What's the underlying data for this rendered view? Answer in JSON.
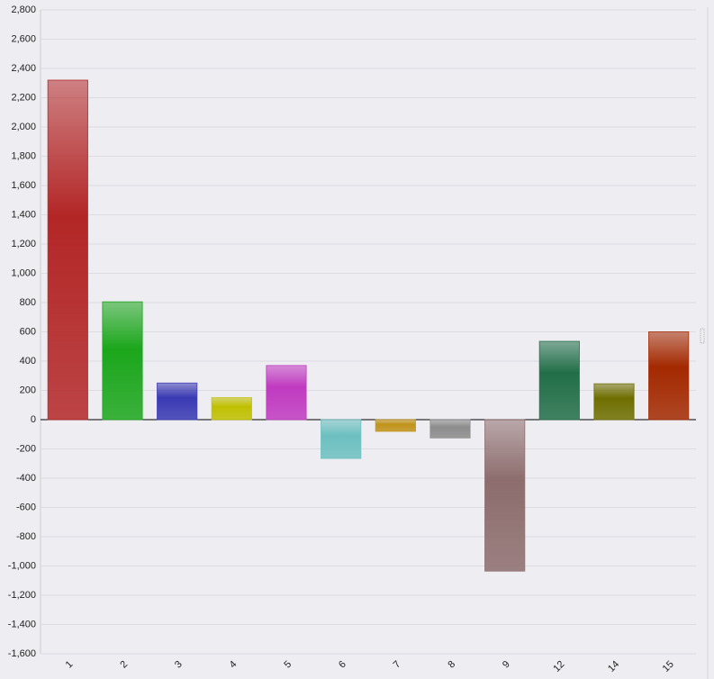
{
  "chart_data": {
    "type": "bar",
    "categories": [
      "1",
      "2",
      "3",
      "4",
      "5",
      "6",
      "7",
      "8",
      "9",
      "12",
      "14",
      "15"
    ],
    "values": [
      2320,
      805,
      250,
      150,
      370,
      -265,
      -80,
      -125,
      -1035,
      535,
      245,
      600
    ],
    "colors": [
      "#e03030",
      "#22d022",
      "#4848e0",
      "#f0f000",
      "#f048f0",
      "#88f0f0",
      "#f0b820",
      "#b0b0b0",
      "#b08888",
      "#2a8a5a",
      "#8a8a00",
      "#cc3300"
    ],
    "ylim": [
      -1600,
      2800
    ],
    "yticks": [
      {
        "value": -1600,
        "label": "-1,600"
      },
      {
        "value": -1400,
        "label": "-1,400"
      },
      {
        "value": -1200,
        "label": "-1,200"
      },
      {
        "value": -1000,
        "label": "-1,000"
      },
      -800,
      -600,
      -400,
      -200,
      0,
      200,
      400,
      600,
      800,
      {
        "value": 1000,
        "label": "1,000"
      },
      {
        "value": 1200,
        "label": "1,200"
      },
      {
        "value": 1400,
        "label": "1,400"
      },
      {
        "value": 1600,
        "label": "1,600"
      },
      {
        "value": 1800,
        "label": "1,800"
      },
      {
        "value": 2000,
        "label": "2,000"
      },
      {
        "value": 2200,
        "label": "2,200"
      },
      {
        "value": 2400,
        "label": "2,400"
      },
      {
        "value": 2600,
        "label": "2,600"
      },
      {
        "value": 2800,
        "label": "2,800"
      }
    ],
    "grid": true
  }
}
